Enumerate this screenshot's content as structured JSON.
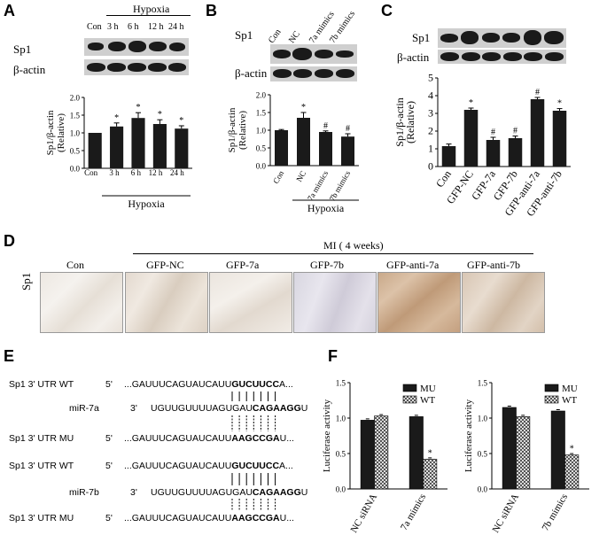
{
  "panels": {
    "A": {
      "label": "A",
      "header": "Hypoxia",
      "lanes": [
        "Con",
        "3 h",
        "6 h",
        "12 h",
        "24 h"
      ],
      "blot_rows": [
        "Sp1",
        "β-actin"
      ]
    },
    "B": {
      "label": "B",
      "lanes": [
        "Con",
        "NC",
        "7a mimics",
        "7b mimics"
      ],
      "blot_rows": [
        "Sp1",
        "β-actin"
      ]
    },
    "C": {
      "label": "C",
      "blot_rows": [
        "Sp1",
        "β-actin"
      ]
    },
    "D": {
      "label": "D",
      "row_label": "Sp1",
      "group_header": "MI ( 4 weeks)",
      "columns": [
        "Con",
        "GFP-NC",
        "GFP-7a",
        "GFP-7b",
        "GFP-anti-7a",
        "GFP-anti-7b"
      ]
    },
    "E": {
      "label": "E",
      "rows": [
        {
          "name": "Sp1  3' UTR WT",
          "dir": "5'",
          "seq": "...GAUUUCAGUAUCAUU",
          "bold": "GUCUUCC",
          "tail": "A..."
        },
        {
          "name": "miR-7a",
          "dir": "3'",
          "seq": "UGUUGUUUUAGUGAU",
          "bold": "CAGAAGG",
          "tail": "U"
        },
        {
          "name": "Sp1  3' UTR MU",
          "dir": "5'",
          "seq": "...GAUUUCAGUAUCAUU",
          "bold": "AAGCCGA",
          "tail": "U..."
        },
        {
          "name": "Sp1  3' UTR WT",
          "dir": "5'",
          "seq": "...GAUUUCAGUAUCAUU",
          "bold": "GUCUUCC",
          "tail": "A..."
        },
        {
          "name": "miR-7b",
          "dir": "3'",
          "seq": "UGUUGUUUUAGUGAU",
          "bold": "CAGAAGG",
          "tail": "U"
        },
        {
          "name": "Sp1  3' UTR MU",
          "dir": "5'",
          "seq": "...GAUUUCAGUAUCAUU",
          "bold": "AAGCCGA",
          "tail": "U..."
        }
      ]
    },
    "F": {
      "label": "F"
    }
  },
  "chart_data": [
    {
      "id": "A",
      "type": "bar",
      "categories": [
        "Con",
        "3 h",
        "6 h",
        "12 h",
        "24 h"
      ],
      "values": [
        1.0,
        1.18,
        1.42,
        1.25,
        1.12
      ],
      "errors": [
        0.0,
        0.1,
        0.15,
        0.12,
        0.08
      ],
      "significance": [
        "",
        "*",
        "*",
        "*",
        "*"
      ],
      "ylabel": "Sp1/β-actin (Relative)",
      "xgroup_label": "Hypoxia",
      "ylim": [
        0,
        2
      ],
      "yticks": [
        0,
        0.5,
        1.0,
        1.5,
        2.0
      ]
    },
    {
      "id": "B",
      "type": "bar",
      "categories": [
        "Con",
        "NC",
        "7a mimics",
        "7b mimics"
      ],
      "values": [
        1.0,
        1.35,
        0.95,
        0.82
      ],
      "errors": [
        0.02,
        0.15,
        0.03,
        0.08
      ],
      "significance": [
        "",
        "*",
        "#",
        "#"
      ],
      "ylabel": "Sp1/β-actin (Relative)",
      "xgroup_label": "Hypoxia",
      "ylim": [
        0,
        2
      ],
      "yticks": [
        0,
        0.5,
        1.0,
        1.5,
        2.0
      ]
    },
    {
      "id": "C",
      "type": "bar",
      "categories": [
        "Con",
        "GFP-NC",
        "GFP-7a",
        "GFP-7b",
        "GFP-anti-7a",
        "GFP-anti-7b"
      ],
      "values": [
        1.15,
        3.2,
        1.5,
        1.6,
        3.8,
        3.15
      ],
      "errors": [
        0.12,
        0.1,
        0.15,
        0.12,
        0.1,
        0.12
      ],
      "significance": [
        "",
        "*",
        "#",
        "#",
        "#",
        "*"
      ],
      "ylabel": "Sp1/β-actin (Relative)",
      "ylim": [
        0,
        5
      ],
      "yticks": [
        0,
        1,
        2,
        3,
        4,
        5
      ]
    },
    {
      "id": "F1",
      "type": "bar",
      "categories": [
        "NC siRNA",
        "7a mimics"
      ],
      "series": [
        {
          "name": "MU",
          "values": [
            0.97,
            1.02
          ]
        },
        {
          "name": "WT",
          "values": [
            1.03,
            0.42
          ]
        }
      ],
      "significance": [
        "",
        "*"
      ],
      "ylabel": "Luciferase activity",
      "ylim": [
        0,
        1.5
      ],
      "yticks": [
        0,
        0.5,
        1.0,
        1.5
      ]
    },
    {
      "id": "F2",
      "type": "bar",
      "categories": [
        "NC siRNA",
        "7b mimics"
      ],
      "series": [
        {
          "name": "MU",
          "values": [
            1.15,
            1.1
          ]
        },
        {
          "name": "WT",
          "values": [
            1.02,
            0.48
          ]
        }
      ],
      "significance": [
        "",
        "*"
      ],
      "ylabel": "Luciferase activity",
      "ylim": [
        0,
        1.5
      ],
      "yticks": [
        0,
        0.5,
        1.0,
        1.5
      ]
    }
  ]
}
